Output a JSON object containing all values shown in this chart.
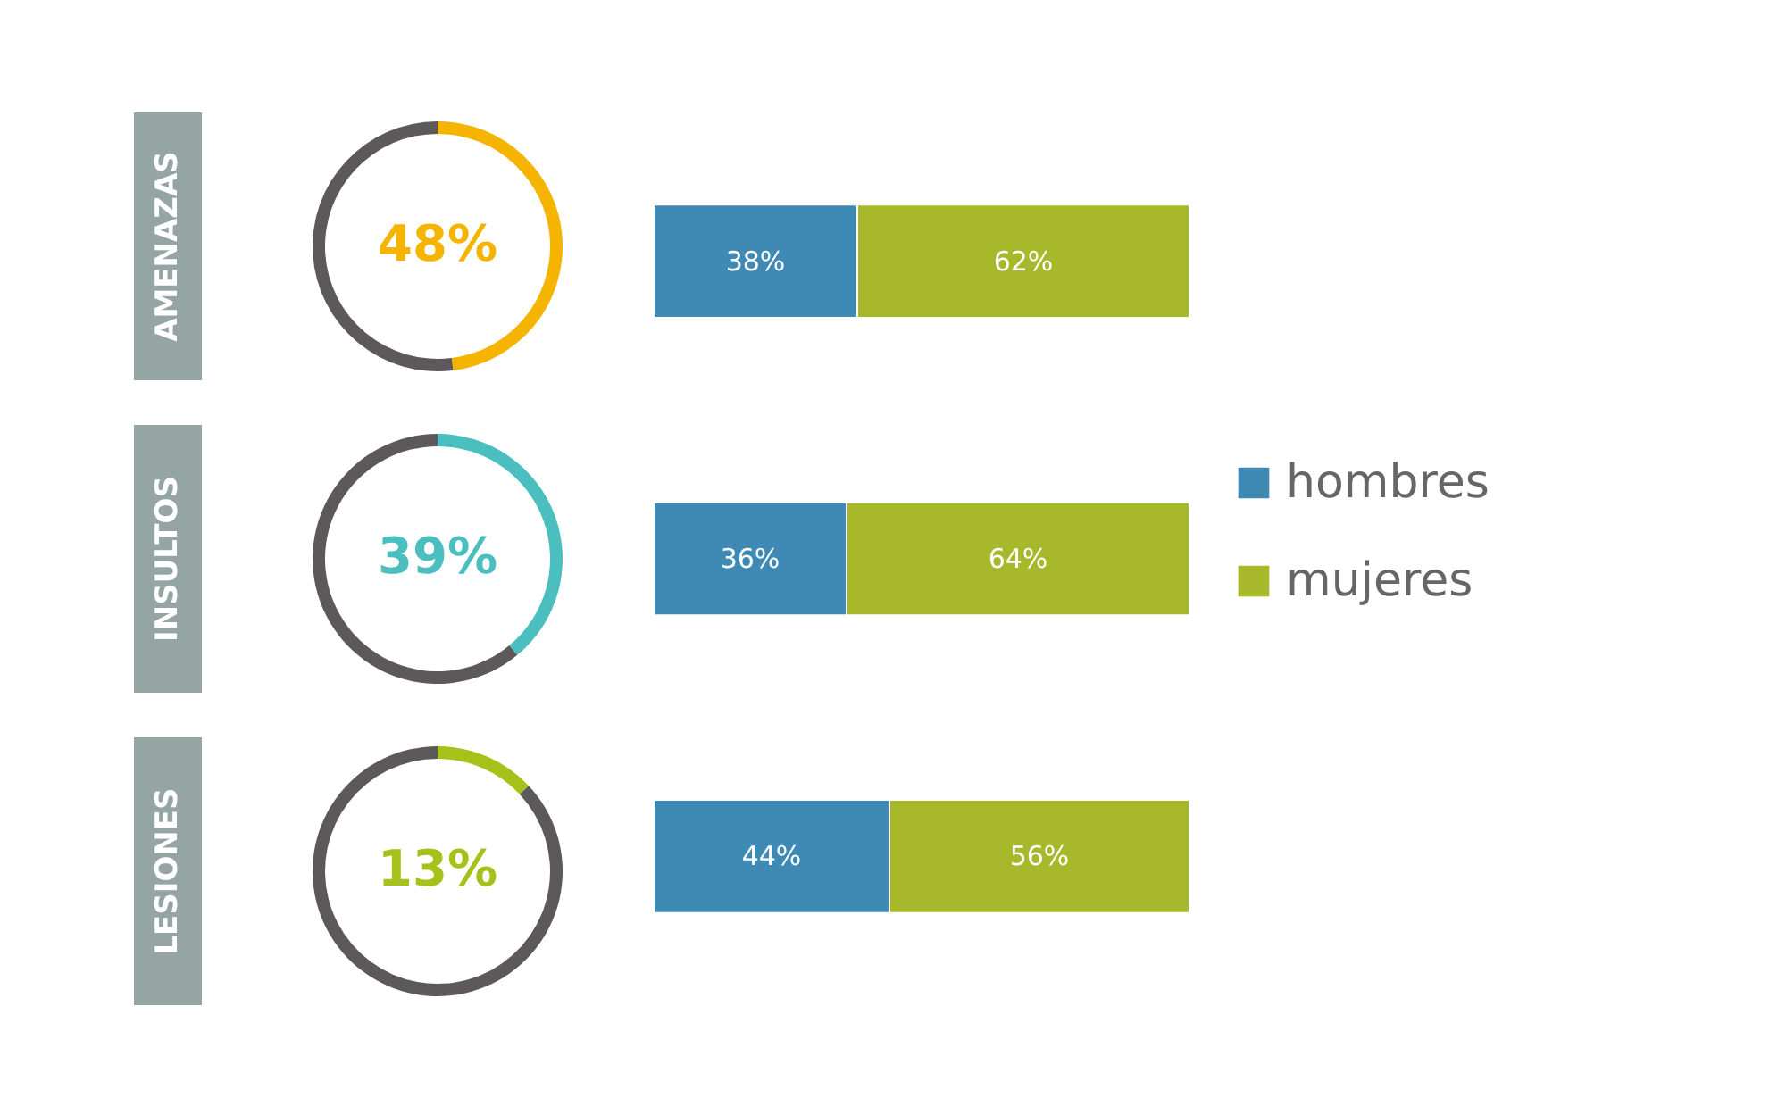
{
  "chart_data": [
    {
      "type": "donut",
      "title": "AMENAZAS",
      "categories": [
        null,
        null
      ],
      "values": [
        48,
        52
      ],
      "colors": [
        "#f5b400",
        "#5d595b"
      ],
      "value_labels": [
        "48%",
        null
      ]
    },
    {
      "type": "donut",
      "title": "INSULTOS",
      "categories": [
        null,
        null
      ],
      "values": [
        39,
        61
      ],
      "colors": [
        "#4bbfc0",
        "#5d595b"
      ],
      "value_labels": [
        "39%",
        null
      ]
    },
    {
      "type": "donut",
      "title": "LESIONES",
      "categories": [
        null,
        null
      ],
      "values": [
        13,
        87
      ],
      "colors": [
        "#a5c21a",
        "#5d595b"
      ],
      "value_labels": [
        "13%",
        null
      ]
    },
    {
      "type": "bar",
      "orientation": "horizontal",
      "stacked": true,
      "categories": [
        null,
        null,
        null
      ],
      "legend": "right",
      "series": [
        {
          "name": "hombres",
          "color": "#3f8ab5",
          "values": [
            38,
            36,
            44
          ],
          "value_labels": [
            "38%",
            "36%",
            "44%"
          ]
        },
        {
          "name": "mujeres",
          "color": "#a7b92a",
          "values": [
            62,
            64,
            56
          ],
          "value_labels": [
            "62%",
            "64%",
            "56%"
          ]
        }
      ]
    }
  ]
}
